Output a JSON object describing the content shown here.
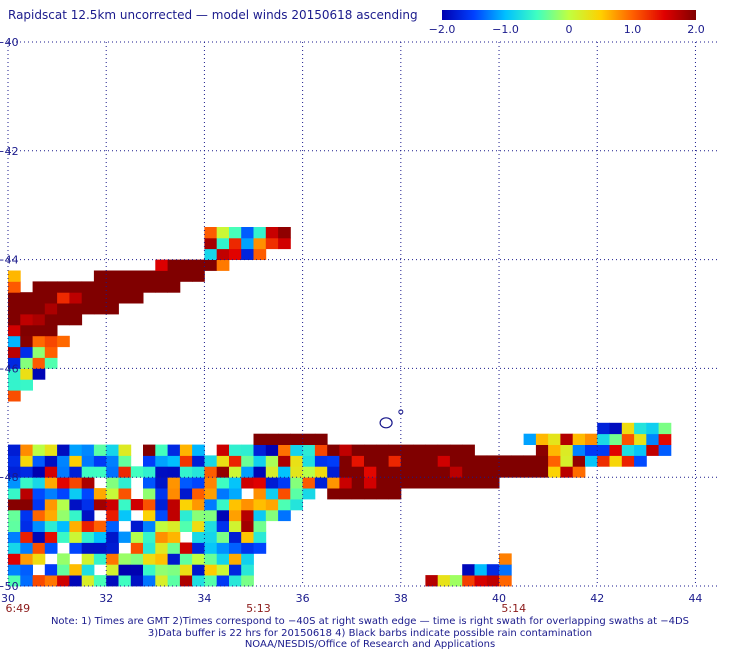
{
  "title": "Rapidscat 12.5km uncorrected — model winds 20150618 ascending",
  "colorbar": {
    "ticks": [
      "−2.0",
      "−1.0",
      "0",
      "1.0",
      "2.0"
    ],
    "tick_values": [
      -2.0,
      -1.0,
      0,
      1.0,
      2.0
    ],
    "range": [
      -2.0,
      2.0
    ],
    "colors": [
      "#0000b0",
      "#0040ff",
      "#00c0ff",
      "#40ffc0",
      "#c0ff40",
      "#ffd000",
      "#ff6000",
      "#e00000",
      "#800000"
    ]
  },
  "chart_data": {
    "type": "heatmap",
    "xlim": [
      30,
      44.5
    ],
    "ylim": [
      -50,
      -40
    ],
    "x_ticks": [
      "30",
      "32",
      "34",
      "36",
      "38",
      "40",
      "42",
      "44"
    ],
    "x_tick_values": [
      30,
      32,
      34,
      36,
      38,
      40,
      42,
      44
    ],
    "y_ticks": [
      "−40",
      "−42",
      "−44",
      "−46",
      "−48",
      "−50"
    ],
    "y_tick_values": [
      -40,
      -42,
      -44,
      -46,
      -48,
      -50
    ],
    "grid": true,
    "times": [
      {
        "label": "6:49",
        "x": 30.2
      },
      {
        "label": "5:13",
        "x": 35.1
      },
      {
        "label": "5:14",
        "x": 40.3
      }
    ],
    "cell_size_deg": [
      0.25,
      0.2
    ],
    "regions": [
      {
        "name": "upper-band",
        "value_pattern": "high",
        "polygon": [
          [
            30.0,
            -44.6
          ],
          [
            34.3,
            -43.9
          ],
          [
            34.3,
            -44.2
          ],
          [
            31.0,
            -45.3
          ],
          [
            30.0,
            -45.4
          ]
        ]
      },
      {
        "name": "upper-band-mixed",
        "value_pattern": "mixed",
        "polygon": [
          [
            34.0,
            -43.3
          ],
          [
            35.8,
            -43.3
          ],
          [
            35.8,
            -43.8
          ],
          [
            34.0,
            -44.2
          ]
        ]
      },
      {
        "name": "left-edge",
        "value_pattern": "mixed",
        "polygon": [
          [
            30.0,
            -44.1
          ],
          [
            30.8,
            -45.0
          ],
          [
            31.2,
            -45.6
          ],
          [
            30.6,
            -46.2
          ],
          [
            30.0,
            -46.6
          ]
        ]
      },
      {
        "name": "lower-swath",
        "value_pattern": "low-mid",
        "polygon": [
          [
            30.0,
            -47.5
          ],
          [
            36.5,
            -47.3
          ],
          [
            36.8,
            -48.0
          ],
          [
            35.2,
            -49.0
          ],
          [
            35.0,
            -50.0
          ],
          [
            30.0,
            -50.0
          ]
        ]
      },
      {
        "name": "right-band",
        "value_pattern": "high",
        "polygon": [
          [
            35.0,
            -47.2
          ],
          [
            39.5,
            -47.5
          ],
          [
            41.0,
            -47.6
          ],
          [
            41.0,
            -48.0
          ],
          [
            39.0,
            -48.2
          ],
          [
            37.0,
            -48.4
          ],
          [
            35.5,
            -48.0
          ]
        ]
      },
      {
        "name": "right-tail",
        "value_pattern": "mixed",
        "polygon": [
          [
            40.5,
            -47.2
          ],
          [
            43.5,
            -47.0
          ],
          [
            43.5,
            -47.6
          ],
          [
            41.0,
            -48.0
          ]
        ]
      },
      {
        "name": "bottom-right",
        "value_pattern": "mixed",
        "polygon": [
          [
            38.0,
            -50.0
          ],
          [
            40.0,
            -49.5
          ],
          [
            40.2,
            -49.2
          ],
          [
            40.2,
            -50.0
          ]
        ]
      }
    ],
    "rain_markers": [
      {
        "shape": "ellipse",
        "x": 37.7,
        "y": -47.0
      },
      {
        "shape": "dot",
        "x": 38.0,
        "y": -46.8
      }
    ]
  },
  "notes": [
    "Note: 1) Times are GMT 2)Times correspond to −40S at right swath edge — time is right swath for overlapping swaths at −4DS",
    "3)Data buffer is 22 hrs for 20150618 4) Black barbs indicate possible rain contamination",
    "NOAA/NESDIS/Office of Research and Applications"
  ]
}
